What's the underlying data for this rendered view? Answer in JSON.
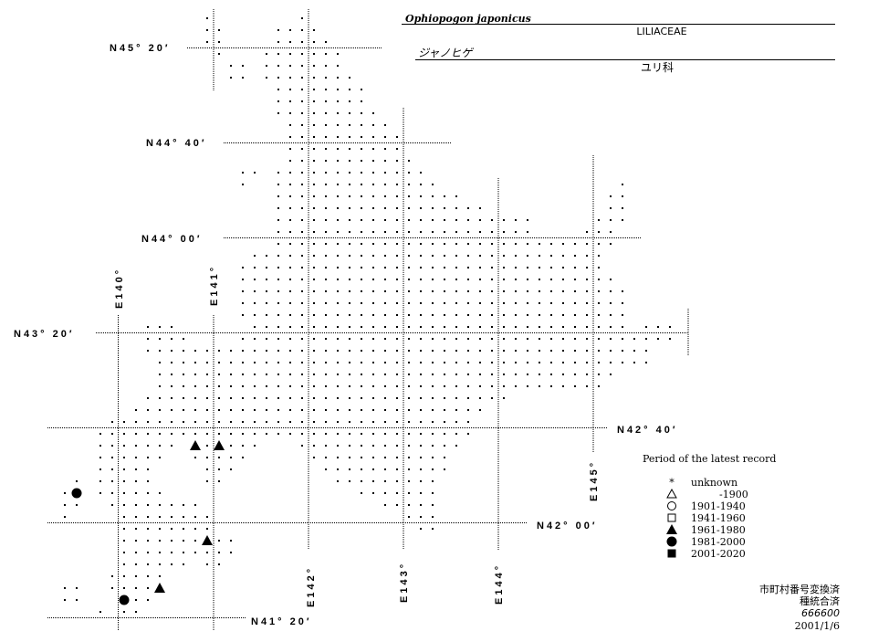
{
  "header": {
    "scientific_name": "Ophiopogon japonicus",
    "family": "LILIACEAE",
    "japanese_name": "ジャノヒゲ",
    "japanese_family": "ユリ科"
  },
  "map": {
    "lat_labels": [
      "N45° 20′",
      "N44° 40′",
      "N44° 00′",
      "N43° 20′",
      "N42° 40′",
      "N42° 00′",
      "N41° 20′"
    ],
    "lon_labels": [
      "E140°",
      "E141°",
      "E142°",
      "E143°",
      "E144°",
      "E145°"
    ],
    "records": [
      {
        "period": "1961-1980",
        "lon": 140.8125,
        "lat": 42.5417
      },
      {
        "period": "1961-1980",
        "lon": 141.0625,
        "lat": 42.5417
      },
      {
        "period": "1981-2000",
        "lon": 139.5625,
        "lat": 42.2083
      },
      {
        "period": "1961-1980",
        "lon": 140.9375,
        "lat": 41.875
      },
      {
        "period": "1961-1980",
        "lon": 140.4375,
        "lat": 41.5417
      },
      {
        "period": "1981-2000",
        "lon": 140.0625,
        "lat": 41.4583
      }
    ]
  },
  "legend": {
    "title": "Period of the latest record",
    "items": [
      {
        "symbol": "asterisk",
        "label": "unknown"
      },
      {
        "symbol": "open-triangle",
        "label": "-1900"
      },
      {
        "symbol": "open-circle",
        "label": "1901-1940"
      },
      {
        "symbol": "open-square",
        "label": "1941-1960"
      },
      {
        "symbol": "filled-triangle",
        "label": "1961-1980"
      },
      {
        "symbol": "filled-circle",
        "label": "1981-2000"
      },
      {
        "symbol": "filled-square",
        "label": "2001-2020"
      }
    ]
  },
  "footer": {
    "line1": "市町村番号変換済",
    "line2": "種統合済",
    "line3": "666600",
    "date": "2001/1/6"
  }
}
